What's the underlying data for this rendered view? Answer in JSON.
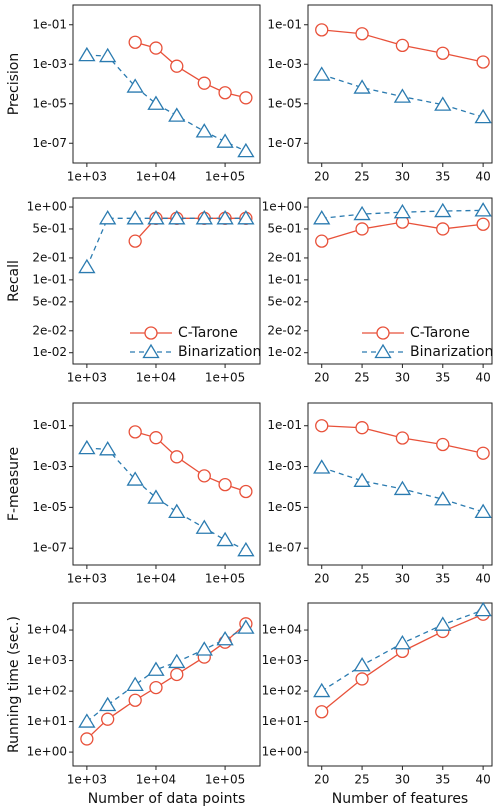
{
  "chart_data": [
    {
      "type": "line",
      "ylabel": "Precision",
      "xscale": "log",
      "yscale": "log",
      "x": [
        1000,
        2000,
        5000,
        10000,
        20000,
        50000,
        100000,
        200000
      ],
      "xlim": [
        630,
        320000
      ],
      "xticks": [
        {
          "value": 1000,
          "label": "1e+03"
        },
        {
          "value": 10000,
          "label": "1e+04"
        },
        {
          "value": 100000,
          "label": "1e+05"
        }
      ],
      "ylim": [
        1e-08,
        1
      ],
      "yticks": [
        {
          "value": 1e-07,
          "label": "1e-07"
        },
        {
          "value": 1e-05,
          "label": "1e-05"
        },
        {
          "value": 0.001,
          "label": "1e-03"
        },
        {
          "value": 0.1,
          "label": "1e-01"
        }
      ],
      "series": [
        {
          "color": "#e8513a",
          "marker": "circle",
          "linestyle": "solid",
          "values": [
            null,
            null,
            0.013,
            0.0066,
            0.0008,
            0.00011,
            3.6e-05,
            2e-05
          ]
        },
        {
          "color": "#2b7bb0",
          "marker": "triangle",
          "linestyle": "dashed",
          "values": [
            0.0029,
            0.0026,
            7.4e-05,
            1e-05,
            2.5e-06,
            4e-07,
            1.2e-07,
            4e-08
          ]
        }
      ]
    },
    {
      "type": "line",
      "xscale": "linear",
      "yscale": "log",
      "x": [
        20,
        25,
        30,
        35,
        40
      ],
      "xlim": [
        18.3,
        41.1
      ],
      "xticks": [
        20,
        25,
        30,
        35,
        40
      ],
      "ylim": [
        1e-08,
        1
      ],
      "yticks": [
        {
          "value": 1e-07,
          "label": "1e-07"
        },
        {
          "value": 1e-05,
          "label": "1e-05"
        },
        {
          "value": 0.001,
          "label": "1e-03"
        },
        {
          "value": 0.1,
          "label": "1e-01"
        }
      ],
      "series": [
        {
          "color": "#e8513a",
          "marker": "circle",
          "linestyle": "solid",
          "values": [
            0.055,
            0.035,
            0.009,
            0.0036,
            0.0013
          ]
        },
        {
          "color": "#2b7bb0",
          "marker": "triangle",
          "linestyle": "dashed",
          "values": [
            0.0003,
            6.6e-05,
            2.3e-05,
            9e-06,
            2.1e-06
          ]
        }
      ]
    },
    {
      "type": "line",
      "ylabel": "Recall",
      "xscale": "log",
      "yscale": "log",
      "legend": "lower right",
      "x": [
        1000,
        2000,
        5000,
        10000,
        20000,
        50000,
        100000,
        200000
      ],
      "xlim": [
        630,
        320000
      ],
      "xticks": [
        {
          "value": 1000,
          "label": "1e+03"
        },
        {
          "value": 10000,
          "label": "1e+04"
        },
        {
          "value": 100000,
          "label": "1e+05"
        }
      ],
      "ylim": [
        0.007,
        1.33
      ],
      "yticks": [
        {
          "value": 0.01,
          "label": "1e-02"
        },
        {
          "value": 0.02,
          "label": "2e-02"
        },
        {
          "value": 0.05,
          "label": "5e-02"
        },
        {
          "value": 0.1,
          "label": "1e-01"
        },
        {
          "value": 0.2,
          "label": "2e-01"
        },
        {
          "value": 0.5,
          "label": "5e-01"
        },
        {
          "value": 1,
          "label": "1e+00"
        }
      ],
      "series": [
        {
          "name": "C-Tarone",
          "color": "#e8513a",
          "marker": "circle",
          "linestyle": "solid",
          "values": [
            null,
            null,
            0.34,
            0.7,
            0.7,
            0.7,
            0.7,
            0.7
          ]
        },
        {
          "name": "Binarization",
          "color": "#2b7bb0",
          "marker": "triangle",
          "linestyle": "dashed",
          "values": [
            0.15,
            0.7,
            0.7,
            0.7,
            0.7,
            0.7,
            0.7,
            0.7
          ]
        }
      ]
    },
    {
      "type": "line",
      "xscale": "linear",
      "yscale": "log",
      "legend": "lower right",
      "x": [
        20,
        25,
        30,
        35,
        40
      ],
      "xlim": [
        18.3,
        41.1
      ],
      "xticks": [
        20,
        25,
        30,
        35,
        40
      ],
      "ylim": [
        0.007,
        1.33
      ],
      "yticks": [
        {
          "value": 0.01,
          "label": "1e-02"
        },
        {
          "value": 0.02,
          "label": "2e-02"
        },
        {
          "value": 0.05,
          "label": "5e-02"
        },
        {
          "value": 0.1,
          "label": "1e-01"
        },
        {
          "value": 0.2,
          "label": "2e-01"
        },
        {
          "value": 0.5,
          "label": "5e-01"
        },
        {
          "value": 1,
          "label": "1e+00"
        }
      ],
      "series": [
        {
          "name": "C-Tarone",
          "color": "#e8513a",
          "marker": "circle",
          "linestyle": "solid",
          "values": [
            0.34,
            0.5,
            0.62,
            0.5,
            0.58
          ]
        },
        {
          "name": "Binarization",
          "color": "#2b7bb0",
          "marker": "triangle",
          "linestyle": "dashed",
          "values": [
            0.7,
            0.8,
            0.85,
            0.88,
            0.9
          ]
        }
      ]
    },
    {
      "type": "line",
      "ylabel": "F-measure",
      "xscale": "log",
      "yscale": "log",
      "x": [
        1000,
        2000,
        5000,
        10000,
        20000,
        50000,
        100000,
        200000
      ],
      "xlim": [
        630,
        320000
      ],
      "xticks": [
        {
          "value": 1000,
          "label": "1e+03"
        },
        {
          "value": 10000,
          "label": "1e+04"
        },
        {
          "value": 100000,
          "label": "1e+05"
        }
      ],
      "ylim": [
        1.5e-08,
        1.3
      ],
      "yticks": [
        {
          "value": 1e-07,
          "label": "1e-07"
        },
        {
          "value": 1e-05,
          "label": "1e-05"
        },
        {
          "value": 0.001,
          "label": "1e-03"
        },
        {
          "value": 0.1,
          "label": "1e-01"
        }
      ],
      "series": [
        {
          "color": "#e8513a",
          "marker": "circle",
          "linestyle": "solid",
          "values": [
            null,
            null,
            0.05,
            0.026,
            0.003,
            0.00035,
            0.00013,
            6e-05
          ]
        },
        {
          "color": "#2b7bb0",
          "marker": "triangle",
          "linestyle": "dashed",
          "values": [
            0.008,
            0.007,
            0.00023,
            3e-05,
            6e-06,
            1e-06,
            2.5e-07,
            8e-08
          ]
        }
      ]
    },
    {
      "type": "line",
      "xscale": "linear",
      "yscale": "log",
      "x": [
        20,
        25,
        30,
        35,
        40
      ],
      "xlim": [
        18.3,
        41.1
      ],
      "xticks": [
        20,
        25,
        30,
        35,
        40
      ],
      "ylim": [
        1.5e-08,
        1.3
      ],
      "yticks": [
        {
          "value": 1e-07,
          "label": "1e-07"
        },
        {
          "value": 1e-05,
          "label": "1e-05"
        },
        {
          "value": 0.001,
          "label": "1e-03"
        },
        {
          "value": 0.1,
          "label": "1e-01"
        }
      ],
      "series": [
        {
          "color": "#e8513a",
          "marker": "circle",
          "linestyle": "solid",
          "values": [
            0.1,
            0.08,
            0.025,
            0.012,
            0.0045
          ]
        },
        {
          "color": "#2b7bb0",
          "marker": "triangle",
          "linestyle": "dashed",
          "values": [
            0.0009,
            0.0002,
            8e-05,
            2.5e-05,
            6e-06
          ]
        }
      ]
    },
    {
      "type": "line",
      "ylabel": "Running time (sec.)",
      "xlabel": "Number of data points",
      "xscale": "log",
      "yscale": "log",
      "x": [
        1000,
        2000,
        5000,
        10000,
        20000,
        50000,
        100000,
        200000
      ],
      "xlim": [
        630,
        320000
      ],
      "xticks": [
        {
          "value": 1000,
          "label": "1e+03"
        },
        {
          "value": 10000,
          "label": "1e+04"
        },
        {
          "value": 100000,
          "label": "1e+05"
        }
      ],
      "ylim": [
        0.35,
        77000
      ],
      "yticks": [
        {
          "value": 1,
          "label": "1e+00"
        },
        {
          "value": 10,
          "label": "1e+01"
        },
        {
          "value": 100,
          "label": "1e+02"
        },
        {
          "value": 1000,
          "label": "1e+03"
        },
        {
          "value": 10000,
          "label": "1e+04"
        }
      ],
      "series": [
        {
          "color": "#e8513a",
          "marker": "circle",
          "linestyle": "solid",
          "values": [
            2.7,
            12,
            50,
            130,
            350,
            1300,
            4000,
            16000
          ]
        },
        {
          "color": "#2b7bb0",
          "marker": "triangle",
          "linestyle": "dashed",
          "values": [
            10,
            35,
            160,
            500,
            900,
            2300,
            5000,
            12000
          ]
        }
      ]
    },
    {
      "type": "line",
      "xlabel": "Number of features",
      "xscale": "linear",
      "yscale": "log",
      "x": [
        20,
        25,
        30,
        35,
        40
      ],
      "xlim": [
        18.3,
        41.1
      ],
      "xticks": [
        20,
        25,
        30,
        35,
        40
      ],
      "ylim": [
        0.35,
        77000
      ],
      "yticks": [
        {
          "value": 1,
          "label": "1e+00"
        },
        {
          "value": 10,
          "label": "1e+01"
        },
        {
          "value": 100,
          "label": "1e+02"
        },
        {
          "value": 1000,
          "label": "1e+03"
        },
        {
          "value": 10000,
          "label": "1e+04"
        }
      ],
      "series": [
        {
          "color": "#e8513a",
          "marker": "circle",
          "linestyle": "solid",
          "values": [
            21,
            250,
            2000,
            9000,
            33000
          ]
        },
        {
          "color": "#2b7bb0",
          "marker": "triangle",
          "linestyle": "dashed",
          "values": [
            100,
            700,
            3700,
            15000,
            45000
          ]
        }
      ]
    }
  ]
}
